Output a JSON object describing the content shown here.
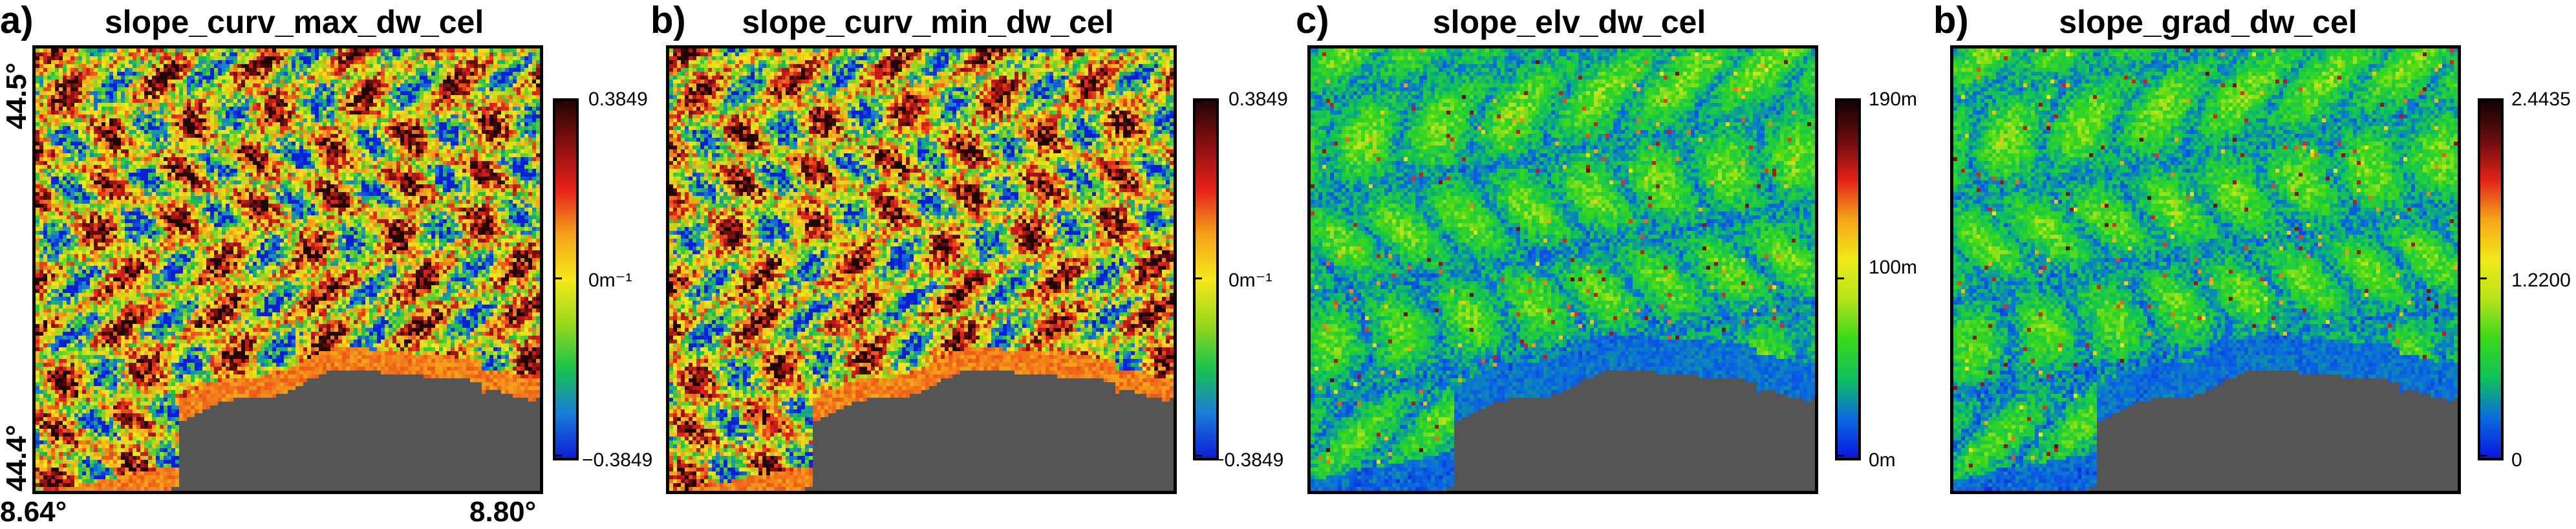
{
  "chart_data": [
    {
      "type": "heatmap",
      "panel_label": "a)",
      "title": "slope_curv_max_dw_cel",
      "palette": "diverging",
      "colorbar": {
        "max_label": "0.3849",
        "mid_label": "0m⁻¹",
        "min_label": "−0.3849",
        "range": [
          -0.3849,
          0.3849
        ]
      },
      "x_ticks": [
        "8.64°",
        "8.80°"
      ],
      "y_ticks": [
        "44.4°",
        "44.5°"
      ],
      "no_data_color": "#555555"
    },
    {
      "type": "heatmap",
      "panel_label": "b)",
      "title": "slope_curv_min_dw_cel",
      "palette": "diverging",
      "colorbar": {
        "max_label": "0.3849",
        "mid_label": "0m⁻¹",
        "min_label": "−0.3849",
        "range": [
          -0.3849,
          0.3849
        ]
      },
      "no_data_color": "#555555"
    },
    {
      "type": "heatmap",
      "panel_label": "c)",
      "title": "slope_elv_dw_cel",
      "palette": "sequential",
      "colorbar": {
        "max_label": "190m",
        "mid_label": "100m",
        "min_label": "0m",
        "range": [
          0,
          190
        ]
      },
      "no_data_color": "#555555"
    },
    {
      "type": "heatmap",
      "panel_label": "b)",
      "title": "slope_grad_dw_cel",
      "palette": "sequential",
      "colorbar": {
        "max_label": "2.4435",
        "mid_label": "1.2200",
        "min_label": "0",
        "range": [
          0,
          2.4435
        ]
      },
      "no_data_color": "#555555"
    }
  ]
}
